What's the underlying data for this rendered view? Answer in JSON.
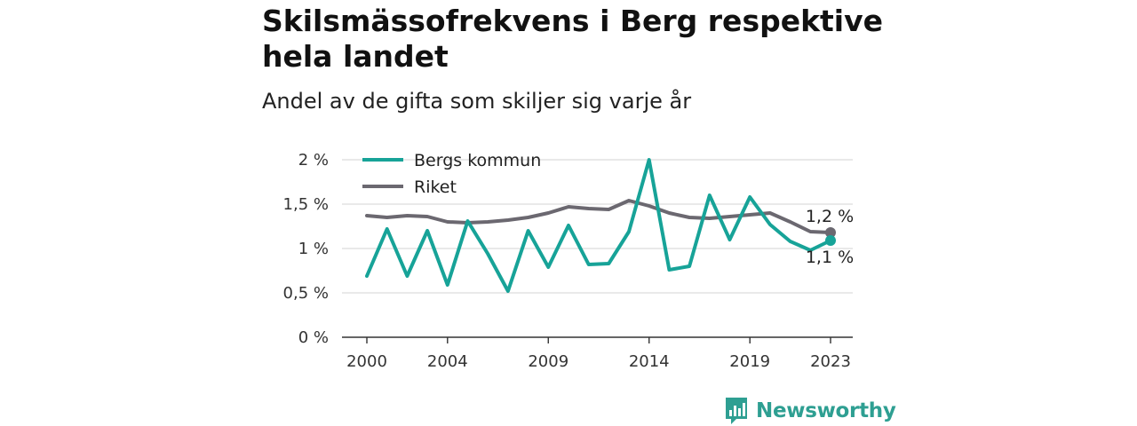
{
  "title": "Skilsmässofrekvens i Berg respektive hela landet",
  "subtitle": "Andel av de gifta som skiljer sig varje år",
  "brand": {
    "name": "Newsworthy",
    "icon": "newsworthy-logo-icon",
    "color": "#2e9f92"
  },
  "chart_data": {
    "type": "line",
    "x": [
      2000,
      2001,
      2002,
      2003,
      2004,
      2005,
      2006,
      2007,
      2008,
      2009,
      2010,
      2011,
      2012,
      2013,
      2014,
      2015,
      2016,
      2017,
      2018,
      2019,
      2020,
      2021,
      2022,
      2023
    ],
    "x_tick_labels": [
      "2000",
      "2004",
      "2009",
      "2014",
      "2019",
      "2023"
    ],
    "x_tick_values": [
      2000,
      2004,
      2009,
      2014,
      2019,
      2023
    ],
    "y_tick_labels": [
      "0 %",
      "0,5 %",
      "1 %",
      "1,5 %",
      "2 %"
    ],
    "y_tick_values": [
      0,
      0.5,
      1,
      1.5,
      2
    ],
    "ylim": [
      0,
      2
    ],
    "grid": true,
    "legend_position": "top-left",
    "series": [
      {
        "name": "Bergs kommun",
        "color": "#17a398",
        "values": [
          0.69,
          1.22,
          0.69,
          1.2,
          0.59,
          1.31,
          0.94,
          0.52,
          1.2,
          0.79,
          1.26,
          0.82,
          0.83,
          1.19,
          2.0,
          0.76,
          0.8,
          1.6,
          1.1,
          1.58,
          1.27,
          1.08,
          0.98,
          1.09
        ],
        "end_label": "1,1 %"
      },
      {
        "name": "Riket",
        "color": "#6b6870",
        "values": [
          1.37,
          1.35,
          1.37,
          1.36,
          1.3,
          1.29,
          1.3,
          1.32,
          1.35,
          1.4,
          1.47,
          1.45,
          1.44,
          1.54,
          1.48,
          1.4,
          1.35,
          1.34,
          1.36,
          1.38,
          1.4,
          1.3,
          1.19,
          1.18
        ],
        "end_label": "1,2 %"
      }
    ]
  }
}
